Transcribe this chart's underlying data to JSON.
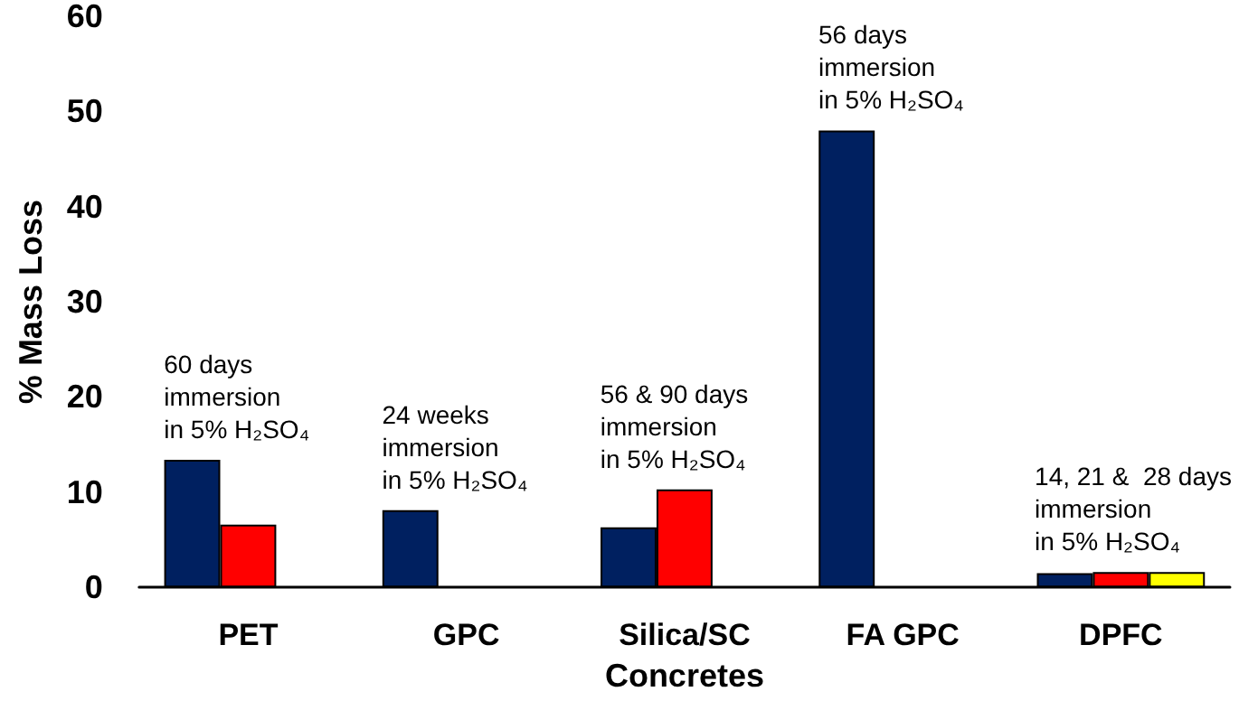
{
  "chart_data": {
    "type": "bar",
    "xlabel": "Concretes",
    "ylabel": "% Mass Loss",
    "categories": [
      "PET",
      "GPC",
      "Silica/SC",
      "FA GPC",
      "DPFC"
    ],
    "series": [
      {
        "color": "#002060",
        "values": [
          13.4,
          8.1,
          6.3,
          48.0,
          1.5
        ]
      },
      {
        "color": "#ff0000",
        "values": [
          6.6,
          null,
          10.3,
          null,
          1.6
        ]
      },
      {
        "color": "#ffff00",
        "values": [
          null,
          null,
          null,
          null,
          1.6
        ]
      }
    ],
    "ylim": [
      0,
      60
    ],
    "yticks": [
      0,
      10,
      20,
      30,
      40,
      50,
      60
    ],
    "grid": false,
    "annotations": [
      "60 days\nimmersion\nin 5% H₂SO₄",
      "24 weeks\nimmersion\nin 5% H₂SO₄",
      "56 & 90 days\nimmersion\nin 5% H₂SO₄",
      "56 days\nimmersion\nin 5% H₂SO₄",
      "14, 21 &  28 days\nimmersion\nin 5% H₂SO₄"
    ]
  }
}
